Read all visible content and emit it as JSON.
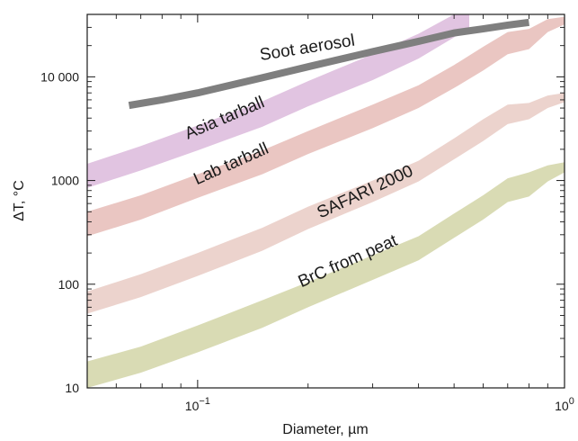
{
  "chart_data": {
    "type": "area",
    "xlabel": "Diameter, µm",
    "ylabel": "ΔT, °C",
    "xscale": "log",
    "yscale": "log",
    "xlim": [
      0.05,
      1.0
    ],
    "ylim": [
      10,
      40000
    ],
    "xticks": [
      {
        "value": 0.1,
        "base": "10",
        "exp": "−1"
      },
      {
        "value": 1.0,
        "base": "10",
        "exp": "0"
      }
    ],
    "yticks": [
      {
        "value": 10,
        "label": "10"
      },
      {
        "value": 100,
        "label": "100"
      },
      {
        "value": 1000,
        "label": "1000"
      },
      {
        "value": 10000,
        "label": "10 000"
      }
    ],
    "grid": false,
    "series": [
      {
        "name": "BrC from peat",
        "type": "band",
        "color": "#d9dbb4",
        "x": [
          0.05,
          0.07,
          0.1,
          0.15,
          0.2,
          0.3,
          0.4,
          0.5,
          0.6,
          0.7,
          0.8,
          0.9,
          1.0
        ],
        "lower": [
          10,
          14,
          22,
          38,
          60,
          110,
          170,
          280,
          420,
          620,
          700,
          980,
          1200
        ],
        "upper": [
          18,
          25,
          40,
          70,
          105,
          190,
          290,
          480,
          720,
          1050,
          1200,
          1400,
          1500
        ],
        "label_pos": {
          "x": 0.26,
          "y": 150,
          "angle": -24
        }
      },
      {
        "name": "SAFARI 2000",
        "type": "band",
        "color": "#ecd3cd",
        "x": [
          0.05,
          0.07,
          0.1,
          0.15,
          0.2,
          0.3,
          0.4,
          0.5,
          0.6,
          0.7,
          0.8,
          0.9,
          1.0
        ],
        "lower": [
          52,
          75,
          120,
          210,
          340,
          620,
          980,
          1600,
          2400,
          3500,
          3900,
          5000,
          5700
        ],
        "upper": [
          85,
          125,
          200,
          350,
          560,
          1000,
          1550,
          2550,
          3900,
          5400,
          5600,
          6600,
          7000
        ],
        "label_pos": {
          "x": 0.29,
          "y": 700,
          "angle": -25
        }
      },
      {
        "name": "Lab tarball",
        "type": "band",
        "color": "#eac6c2",
        "x": [
          0.05,
          0.07,
          0.1,
          0.15,
          0.2,
          0.3,
          0.4,
          0.5,
          0.6,
          0.7,
          0.8,
          0.9,
          1.0
        ],
        "lower": [
          290,
          420,
          680,
          1150,
          1800,
          3200,
          5000,
          7800,
          11500,
          16500,
          18500,
          27000,
          32000
        ],
        "upper": [
          500,
          720,
          1150,
          1950,
          3000,
          5400,
          8300,
          13000,
          19500,
          27000,
          29000,
          36000,
          38000
        ],
        "label_pos": {
          "x": 0.125,
          "y": 1300,
          "angle": -24
        }
      },
      {
        "name": "Asia tarball",
        "type": "band",
        "color": "#e1c4e1",
        "x": [
          0.05,
          0.07,
          0.1,
          0.15,
          0.2,
          0.3,
          0.4,
          0.5,
          0.55
        ],
        "lower": [
          850,
          1250,
          1950,
          3300,
          5200,
          9300,
          15000,
          24000,
          30000
        ],
        "upper": [
          1450,
          2150,
          3400,
          5800,
          9100,
          16500,
          26000,
          40000,
          40000
        ],
        "label_pos": {
          "x": 0.12,
          "y": 3600,
          "angle": -23
        }
      },
      {
        "name": "Soot aerosol",
        "type": "line",
        "color": "#7f7f7f",
        "x": [
          0.065,
          0.08,
          0.1,
          0.15,
          0.2,
          0.3,
          0.4,
          0.5,
          0.6,
          0.7,
          0.8
        ],
        "y": [
          5300,
          6000,
          7000,
          9800,
          12500,
          17500,
          22000,
          26500,
          29000,
          31500,
          33500
        ],
        "label_pos": {
          "x": 0.2,
          "y": 17000,
          "angle": -9
        }
      }
    ]
  }
}
